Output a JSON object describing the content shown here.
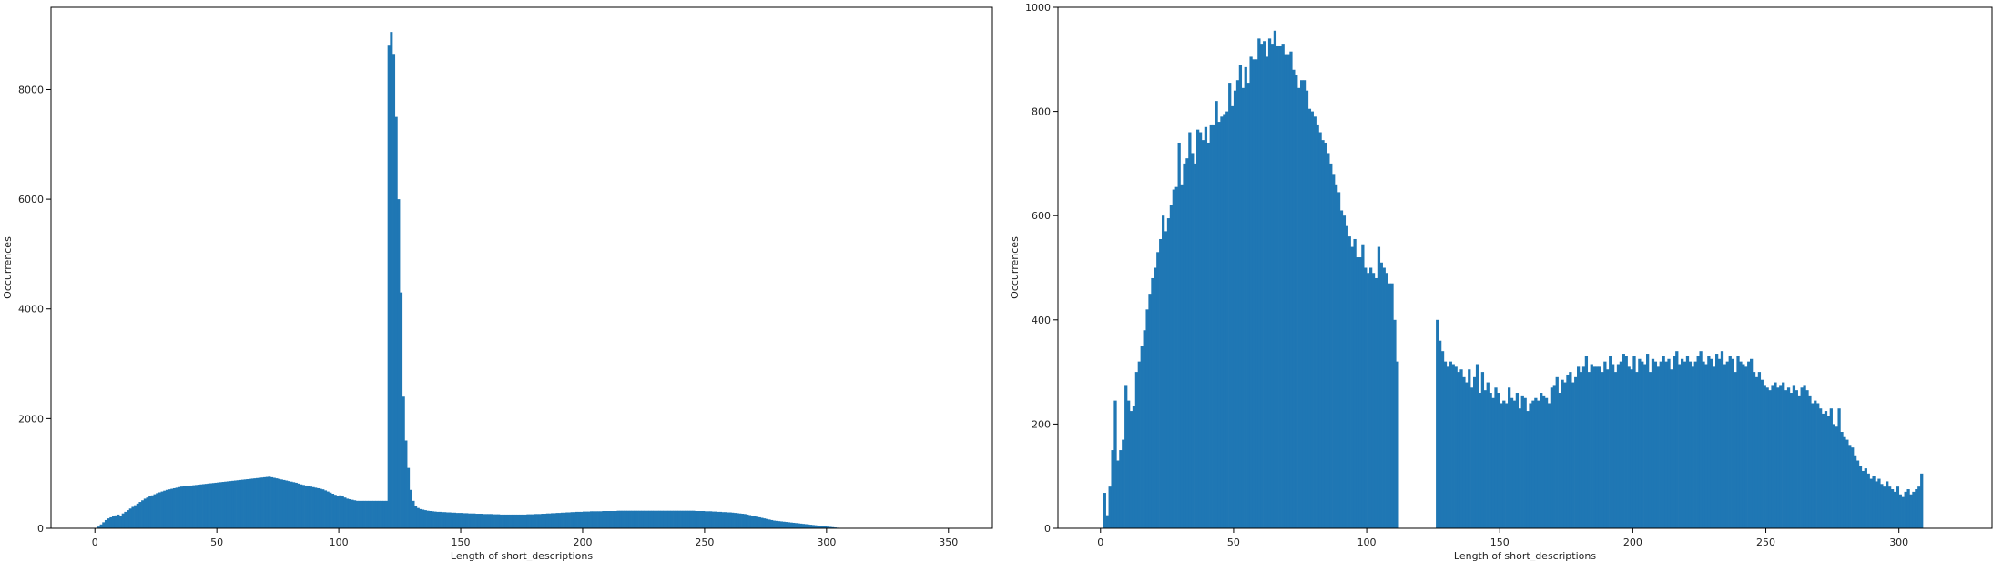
{
  "chart_data": [
    {
      "type": "bar",
      "title": "",
      "xlabel": "Length of short_descriptions",
      "ylabel": "Occurrences",
      "xlim": [
        -18,
        368
      ],
      "ylim": [
        0,
        9500
      ],
      "xticks": [
        0,
        50,
        100,
        150,
        200,
        250,
        300,
        350
      ],
      "yticks": [
        0,
        2000,
        4000,
        6000,
        8000
      ],
      "color": "#1f77b4",
      "bins": {
        "start": 0,
        "width": 1,
        "values": [
          0,
          30,
          70,
          110,
          150,
          180,
          200,
          215,
          235,
          250,
          230,
          270,
          300,
          330,
          360,
          390,
          420,
          450,
          480,
          510,
          540,
          560,
          580,
          600,
          620,
          640,
          655,
          670,
          685,
          700,
          710,
          720,
          730,
          740,
          750,
          760,
          765,
          770,
          775,
          780,
          785,
          790,
          795,
          800,
          805,
          810,
          815,
          820,
          825,
          830,
          835,
          840,
          845,
          850,
          855,
          860,
          865,
          870,
          875,
          880,
          885,
          890,
          895,
          900,
          905,
          910,
          915,
          920,
          925,
          930,
          935,
          940,
          930,
          920,
          910,
          900,
          890,
          880,
          870,
          860,
          850,
          840,
          830,
          815,
          800,
          790,
          780,
          770,
          760,
          750,
          740,
          730,
          720,
          710,
          690,
          670,
          650,
          630,
          610,
          590,
          600,
          580,
          560,
          540,
          530,
          520,
          510,
          500,
          500,
          500,
          500,
          500,
          500,
          500,
          500,
          500,
          500,
          500,
          500,
          500,
          8800,
          9050,
          8650,
          7500,
          6000,
          4300,
          2400,
          1600,
          1100,
          700,
          500,
          400,
          370,
          350,
          340,
          330,
          320,
          315,
          310,
          305,
          300,
          300,
          295,
          295,
          290,
          290,
          285,
          285,
          280,
          280,
          280,
          275,
          275,
          270,
          270,
          270,
          265,
          265,
          265,
          260,
          260,
          260,
          260,
          255,
          255,
          255,
          250,
          250,
          250,
          250,
          250,
          250,
          250,
          250,
          250,
          250,
          250,
          255,
          255,
          255,
          260,
          260,
          260,
          265,
          265,
          270,
          270,
          275,
          275,
          280,
          280,
          285,
          285,
          290,
          290,
          295,
          295,
          300,
          300,
          300,
          305,
          305,
          305,
          310,
          310,
          310,
          310,
          310,
          315,
          315,
          315,
          315,
          315,
          315,
          320,
          320,
          320,
          320,
          320,
          320,
          320,
          320,
          320,
          320,
          320,
          320,
          320,
          320,
          320,
          320,
          320,
          320,
          320,
          320,
          320,
          320,
          320,
          320,
          320,
          320,
          320,
          320,
          320,
          320,
          320,
          320,
          315,
          315,
          315,
          315,
          310,
          310,
          310,
          305,
          305,
          300,
          300,
          295,
          295,
          290,
          290,
          285,
          280,
          275,
          270,
          265,
          260,
          250,
          240,
          230,
          220,
          210,
          200,
          190,
          180,
          170,
          160,
          150,
          140,
          135,
          130,
          125,
          120,
          115,
          110,
          105,
          100,
          95,
          90,
          85,
          80,
          75,
          70,
          65,
          60,
          55,
          50,
          45,
          40,
          35,
          30,
          25,
          20,
          15,
          10
        ]
      }
    },
    {
      "type": "bar",
      "title": "",
      "xlabel": "Length of short_descriptions",
      "ylabel": "Occurrences",
      "xlim": [
        -16,
        335
      ],
      "ylim": [
        0,
        1000
      ],
      "xticks": [
        0,
        50,
        100,
        150,
        200,
        250,
        300
      ],
      "yticks": [
        0,
        200,
        400,
        600,
        800,
        1000
      ],
      "color": "#1f77b4",
      "bins": {
        "start": 1,
        "width": 1,
        "values": [
          68,
          25,
          80,
          150,
          245,
          130,
          150,
          170,
          275,
          245,
          225,
          235,
          300,
          320,
          350,
          380,
          420,
          450,
          480,
          500,
          530,
          555,
          600,
          570,
          595,
          620,
          650,
          655,
          740,
          660,
          700,
          710,
          760,
          720,
          700,
          765,
          760,
          745,
          770,
          740,
          775,
          775,
          820,
          780,
          790,
          795,
          800,
          855,
          810,
          840,
          860,
          890,
          845,
          885,
          855,
          905,
          900,
          900,
          940,
          930,
          935,
          905,
          940,
          930,
          955,
          925,
          925,
          930,
          910,
          910,
          915,
          880,
          870,
          845,
          860,
          860,
          840,
          805,
          800,
          790,
          775,
          760,
          745,
          740,
          720,
          700,
          680,
          660,
          645,
          610,
          600,
          580,
          560,
          540,
          555,
          520,
          520,
          545,
          500,
          490,
          500,
          490,
          480,
          540,
          510,
          500,
          490,
          470,
          470,
          400,
          320,
          0,
          0,
          0,
          0,
          0,
          0,
          0,
          0,
          0,
          0,
          0,
          0,
          0,
          0,
          400,
          360,
          340,
          320,
          310,
          320,
          315,
          310,
          300,
          305,
          290,
          280,
          305,
          270,
          290,
          315,
          260,
          300,
          265,
          280,
          260,
          250,
          270,
          260,
          240,
          245,
          240,
          270,
          250,
          245,
          260,
          230,
          255,
          250,
          225,
          240,
          245,
          250,
          245,
          260,
          255,
          250,
          240,
          270,
          275,
          290,
          260,
          285,
          280,
          295,
          300,
          280,
          290,
          310,
          300,
          310,
          330,
          300,
          315,
          310,
          310,
          310,
          300,
          320,
          305,
          330,
          315,
          300,
          315,
          320,
          335,
          330,
          310,
          305,
          330,
          300,
          325,
          320,
          315,
          335,
          300,
          325,
          320,
          310,
          320,
          330,
          320,
          325,
          305,
          330,
          340,
          315,
          325,
          320,
          330,
          320,
          310,
          320,
          330,
          340,
          320,
          315,
          330,
          325,
          310,
          335,
          325,
          340,
          315,
          320,
          330,
          325,
          300,
          330,
          320,
          315,
          310,
          320,
          325,
          300,
          290,
          300,
          285,
          275,
          270,
          265,
          275,
          280,
          270,
          275,
          280,
          265,
          270,
          260,
          275,
          265,
          255,
          270,
          275,
          265,
          255,
          240,
          245,
          240,
          230,
          220,
          225,
          215,
          230,
          200,
          195,
          230,
          185,
          175,
          170,
          160,
          155,
          140,
          130,
          120,
          110,
          115,
          105,
          95,
          100,
          90,
          95,
          85,
          80,
          90,
          80,
          75,
          70,
          80,
          65,
          60,
          70,
          75,
          65,
          70,
          75,
          80,
          105
        ]
      }
    }
  ]
}
